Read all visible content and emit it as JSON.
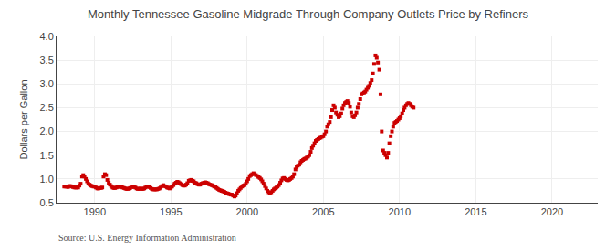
{
  "chart_data": {
    "type": "scatter",
    "title": "Monthly Tennessee Gasoline Midgrade Through Company Outlets Price by Refiners",
    "ylabel": "Dollars per Gallon",
    "annotations": [
      "Source: U.S. Energy Information Administration"
    ],
    "color": "#cc0000",
    "marker": "square",
    "grid": true,
    "xlim": [
      1987.5,
      2023.0
    ],
    "ylim": [
      0.5,
      4.0
    ],
    "xticks": [
      1990,
      1995,
      2000,
      2005,
      2010,
      2015,
      2020
    ],
    "yticks": [
      0.5,
      {
        "value": 1.0,
        "label": "1.0"
      },
      1.5,
      {
        "value": 2.0,
        "label": "2.0"
      },
      2.5,
      {
        "value": 3.0,
        "label": "3.0"
      },
      3.5,
      {
        "value": 4.0,
        "label": "4.0"
      }
    ],
    "x": [
      1988.0,
      1988.08,
      1988.17,
      1988.25,
      1988.33,
      1988.42,
      1988.5,
      1988.58,
      1988.67,
      1988.75,
      1988.83,
      1988.92,
      1989.0,
      1989.08,
      1989.17,
      1989.25,
      1989.33,
      1989.42,
      1989.5,
      1989.58,
      1989.67,
      1989.75,
      1989.83,
      1989.92,
      1990.0,
      1990.08,
      1990.17,
      1990.25,
      1990.33,
      1990.42,
      1990.5,
      1990.58,
      1990.67,
      1990.75,
      1990.83,
      1990.92,
      1991.0,
      1991.08,
      1991.17,
      1991.25,
      1991.33,
      1991.42,
      1991.5,
      1991.58,
      1991.67,
      1991.75,
      1991.83,
      1991.92,
      1992.0,
      1992.08,
      1992.17,
      1992.25,
      1992.33,
      1992.42,
      1992.5,
      1992.58,
      1992.67,
      1992.75,
      1992.83,
      1992.92,
      1993.0,
      1993.08,
      1993.17,
      1993.25,
      1993.33,
      1993.42,
      1993.5,
      1993.58,
      1993.67,
      1993.75,
      1993.83,
      1993.92,
      1994.0,
      1994.08,
      1994.17,
      1994.25,
      1994.33,
      1994.42,
      1994.5,
      1994.58,
      1994.67,
      1994.75,
      1994.83,
      1994.92,
      1995.0,
      1995.08,
      1995.17,
      1995.25,
      1995.33,
      1995.42,
      1995.5,
      1995.58,
      1995.67,
      1995.75,
      1995.83,
      1995.92,
      1996.0,
      1996.08,
      1996.17,
      1996.25,
      1996.33,
      1996.42,
      1996.5,
      1996.58,
      1996.67,
      1996.75,
      1996.83,
      1996.92,
      1997.0,
      1997.08,
      1997.17,
      1997.25,
      1997.33,
      1997.42,
      1997.5,
      1997.58,
      1997.67,
      1997.75,
      1997.83,
      1997.92,
      1998.0,
      1998.08,
      1998.17,
      1998.25,
      1998.33,
      1998.42,
      1998.5,
      1998.58,
      1998.67,
      1998.75,
      1998.83,
      1998.92,
      1999.0,
      1999.08,
      1999.17,
      1999.25,
      1999.33,
      1999.42,
      1999.5,
      1999.58,
      1999.67,
      1999.75,
      1999.83,
      1999.92,
      2000.0,
      2000.08,
      2000.17,
      2000.25,
      2000.33,
      2000.42,
      2000.5,
      2000.58,
      2000.67,
      2000.75,
      2000.83,
      2000.92,
      2001.0,
      2001.08,
      2001.17,
      2001.25,
      2001.33,
      2001.42,
      2001.5,
      2001.58,
      2001.67,
      2001.75,
      2001.83,
      2001.92,
      2002.0,
      2002.08,
      2002.17,
      2002.25,
      2002.33,
      2002.42,
      2002.5,
      2002.58,
      2002.67,
      2002.75,
      2002.83,
      2002.92,
      2003.0,
      2003.08,
      2003.17,
      2003.25,
      2003.33,
      2003.42,
      2003.5,
      2003.58,
      2003.67,
      2003.75,
      2003.83,
      2003.92,
      2004.0,
      2004.08,
      2004.17,
      2004.25,
      2004.33,
      2004.42,
      2004.5,
      2004.58,
      2004.67,
      2004.75,
      2004.83,
      2004.92,
      2005.0,
      2005.08,
      2005.17,
      2005.25,
      2005.33,
      2005.42,
      2005.5,
      2005.58,
      2005.67,
      2005.75,
      2005.83,
      2005.92,
      2006.0,
      2006.08,
      2006.17,
      2006.25,
      2006.33,
      2006.42,
      2006.5,
      2006.58,
      2006.67,
      2006.75,
      2006.83,
      2006.92,
      2007.0,
      2007.08,
      2007.17,
      2007.25,
      2007.33,
      2007.42,
      2007.5,
      2007.58,
      2007.67,
      2007.75,
      2007.83,
      2007.92,
      2008.0,
      2008.08,
      2008.17,
      2008.25,
      2008.33,
      2008.42,
      2008.5,
      2008.58,
      2008.67,
      2008.75,
      2008.83,
      2008.92,
      2009.0,
      2009.08,
      2009.17,
      2009.25,
      2009.33,
      2009.42,
      2009.5,
      2009.58,
      2009.67,
      2009.75,
      2009.83,
      2009.92,
      2010.0,
      2010.08,
      2010.17,
      2010.25,
      2010.33,
      2010.42,
      2010.5,
      2010.58,
      2010.67,
      2010.75,
      2010.83,
      2010.92
    ],
    "values": [
      0.84,
      0.84,
      0.84,
      0.83,
      0.85,
      0.85,
      0.84,
      0.83,
      0.82,
      0.82,
      0.82,
      0.82,
      0.86,
      0.9,
      1.05,
      1.08,
      1.05,
      1.0,
      0.95,
      0.9,
      0.88,
      0.86,
      0.85,
      0.84,
      0.84,
      0.82,
      0.8,
      0.8,
      0.81,
      0.81,
      0.82,
      1.05,
      1.1,
      1.08,
      0.98,
      0.92,
      0.88,
      0.85,
      0.82,
      0.81,
      0.81,
      0.82,
      0.83,
      0.84,
      0.84,
      0.83,
      0.82,
      0.81,
      0.8,
      0.79,
      0.79,
      0.8,
      0.81,
      0.83,
      0.84,
      0.83,
      0.82,
      0.8,
      0.79,
      0.79,
      0.8,
      0.79,
      0.79,
      0.8,
      0.82,
      0.84,
      0.84,
      0.83,
      0.81,
      0.79,
      0.78,
      0.78,
      0.78,
      0.78,
      0.79,
      0.8,
      0.82,
      0.85,
      0.87,
      0.85,
      0.84,
      0.82,
      0.81,
      0.8,
      0.82,
      0.84,
      0.87,
      0.9,
      0.92,
      0.94,
      0.93,
      0.91,
      0.89,
      0.87,
      0.86,
      0.86,
      0.88,
      0.91,
      0.96,
      0.97,
      0.98,
      0.96,
      0.95,
      0.92,
      0.91,
      0.89,
      0.88,
      0.88,
      0.9,
      0.91,
      0.92,
      0.93,
      0.92,
      0.91,
      0.89,
      0.88,
      0.87,
      0.86,
      0.84,
      0.83,
      0.81,
      0.79,
      0.77,
      0.76,
      0.75,
      0.74,
      0.73,
      0.71,
      0.7,
      0.69,
      0.68,
      0.67,
      0.67,
      0.65,
      0.63,
      0.65,
      0.7,
      0.75,
      0.78,
      0.81,
      0.84,
      0.86,
      0.87,
      0.9,
      0.95,
      1.0,
      1.06,
      1.08,
      1.1,
      1.12,
      1.1,
      1.08,
      1.06,
      1.04,
      1.02,
      0.99,
      0.95,
      0.9,
      0.85,
      0.8,
      0.75,
      0.72,
      0.7,
      0.72,
      0.75,
      0.78,
      0.8,
      0.82,
      0.84,
      0.87,
      0.92,
      0.97,
      1.01,
      1.02,
      1.0,
      0.98,
      0.97,
      0.98,
      1.0,
      1.02,
      1.05,
      1.1,
      1.2,
      1.25,
      1.28,
      1.3,
      1.35,
      1.38,
      1.4,
      1.42,
      1.43,
      1.45,
      1.47,
      1.5,
      1.57,
      1.65,
      1.7,
      1.75,
      1.8,
      1.82,
      1.84,
      1.86,
      1.87,
      1.89,
      1.9,
      1.94,
      2.0,
      2.1,
      2.15,
      2.2,
      2.3,
      2.45,
      2.55,
      2.5,
      2.4,
      2.35,
      2.3,
      2.32,
      2.38,
      2.48,
      2.55,
      2.6,
      2.62,
      2.64,
      2.6,
      2.52,
      2.4,
      2.32,
      2.3,
      2.34,
      2.4,
      2.5,
      2.58,
      2.68,
      2.78,
      2.8,
      2.82,
      2.84,
      2.88,
      2.92,
      2.96,
      3.02,
      3.08,
      3.22,
      3.42,
      3.6,
      3.55,
      3.45,
      3.3,
      2.78,
      2.0,
      1.6,
      1.55,
      1.5,
      1.45,
      1.55,
      1.75,
      1.9,
      2.0,
      2.1,
      2.18,
      2.2,
      2.22,
      2.25,
      2.28,
      2.32,
      2.38,
      2.45,
      2.5,
      2.55,
      2.58,
      2.6,
      2.58,
      2.55,
      2.52,
      2.5
    ]
  }
}
